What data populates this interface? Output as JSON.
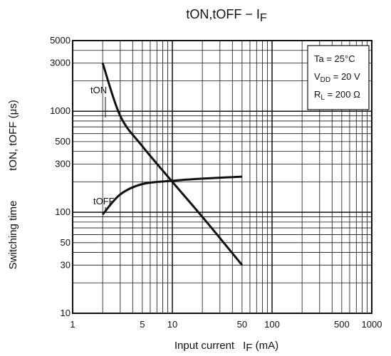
{
  "chart_data": {
    "type": "line",
    "title": {
      "base": "t",
      "parts": [
        "ON",
        ",t",
        "OFF",
        " − I",
        "F"
      ]
    },
    "x_scale": "log",
    "y_scale": "log",
    "xlim": [
      1,
      1000
    ],
    "ylim": [
      10,
      5000
    ],
    "x_ticks": [
      1,
      5,
      10,
      50,
      100,
      500,
      1000
    ],
    "y_ticks": [
      10,
      30,
      50,
      100,
      300,
      500,
      1000,
      3000,
      5000
    ],
    "xlabel": {
      "main": "Input current",
      "symbol": "I",
      "sub": "F",
      "unit": " (mA)"
    },
    "ylabel": {
      "main": "Switching time",
      "symbol": "tON, tOFF (μs)"
    },
    "grid": true,
    "series": [
      {
        "name": "tON",
        "points": [
          [
            2,
            3000
          ],
          [
            3,
            900
          ],
          [
            5,
            450
          ],
          [
            10,
            200
          ],
          [
            20,
            90
          ],
          [
            50,
            30
          ]
        ]
      },
      {
        "name": "tOFF",
        "points": [
          [
            2,
            95
          ],
          [
            3,
            150
          ],
          [
            5,
            190
          ],
          [
            10,
            205
          ],
          [
            20,
            215
          ],
          [
            50,
            225
          ]
        ]
      }
    ],
    "conditions": [
      {
        "text": "Ta = 25°C"
      },
      {
        "symbol": "V",
        "sub": "DD",
        "rest": " = 20 V"
      },
      {
        "symbol": "R",
        "sub": "L",
        "rest": " = 200 Ω"
      }
    ]
  },
  "colors": {
    "line": "#111111",
    "grid": "#111111",
    "background": "#ffffff"
  }
}
